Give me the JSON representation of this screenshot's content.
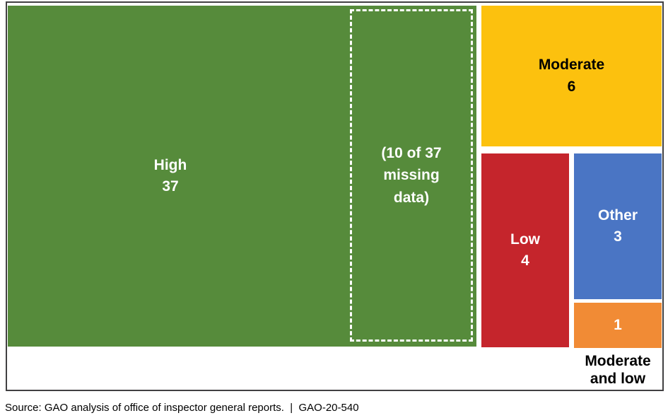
{
  "chart_data": {
    "type": "treemap",
    "items": [
      {
        "label": "High",
        "value": 37,
        "color": "#568B3B",
        "text_color": "#FFFFFF",
        "note": "10 of 37 missing data"
      },
      {
        "label": "Moderate",
        "value": 6,
        "color": "#FCC10E",
        "text_color": "#000000"
      },
      {
        "label": "Low",
        "value": 4,
        "color": "#C5252C",
        "text_color": "#FFFFFF"
      },
      {
        "label": "Other",
        "value": 3,
        "color": "#4A75C4",
        "text_color": "#FFFFFF"
      },
      {
        "label": "Moderate and low",
        "value": 1,
        "color": "#F18B35",
        "text_color": "#FFFFFF"
      }
    ],
    "annotation": {
      "text": "(10 of 37 missing data)",
      "lines": [
        "(10 of 37",
        "missing",
        "data)"
      ]
    },
    "legend_position": "none",
    "frame_border_color": "#414042",
    "source": "Source: GAO analysis of office of inspector general reports.  |  GAO-20-540"
  }
}
